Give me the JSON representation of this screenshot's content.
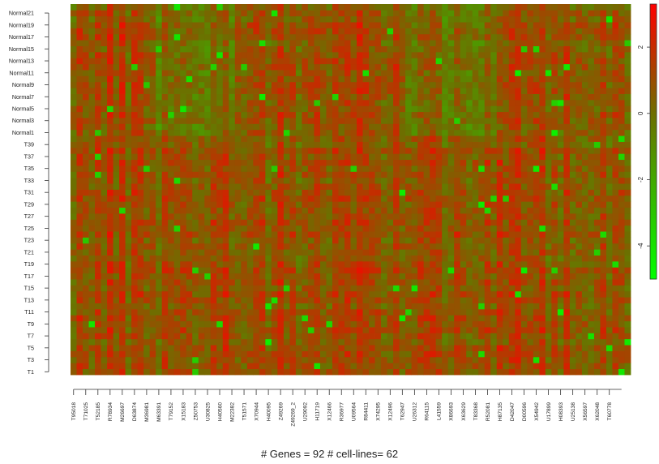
{
  "chart_data": {
    "type": "heatmap",
    "caption": "# Genes = 92  # cell-lines= 62",
    "n_rows": 62,
    "n_cols": 92,
    "row_labels": [
      "T1",
      "T3",
      "T5",
      "T7",
      "T9",
      "T11",
      "T13",
      "T15",
      "T17",
      "T19",
      "T21",
      "T23",
      "T25",
      "T27",
      "T29",
      "T31",
      "T33",
      "T35",
      "T37",
      "T39",
      "Normal1",
      "Normal3",
      "Normal5",
      "Normal7",
      "Normal9",
      "Normal11",
      "Normal13",
      "Normal15",
      "Normal17",
      "Normal19",
      "Normal21"
    ],
    "col_labels": [
      "T95018",
      "T71025",
      "T52185",
      "R78934",
      "M26697",
      "D63874",
      "M36981",
      "M63391",
      "T79152",
      "X15183",
      "Z50753",
      "U30825",
      "H40560",
      "M22382",
      "T51571",
      "X70944",
      "H40095",
      "Z49269",
      "Z49269_2",
      "U29092",
      "H11719",
      "X12466",
      "R36977",
      "U09564",
      "R84411",
      "X74295",
      "X12496",
      "T62947",
      "U26312",
      "R64115",
      "L41559",
      "X86693",
      "X63629",
      "T83368",
      "R52081",
      "H87135",
      "D42047",
      "D00596",
      "X54942",
      "U17899",
      "H08393",
      "U25138",
      "X56597",
      "X62048",
      "T60778"
    ],
    "color_scale": {
      "min": -5,
      "max": 3.3,
      "low_color": "#00ff00",
      "mid_color": "#6e6e00",
      "high_color": "#ff0000",
      "ticks": [
        "-4",
        "-2",
        "0",
        "2"
      ]
    }
  }
}
